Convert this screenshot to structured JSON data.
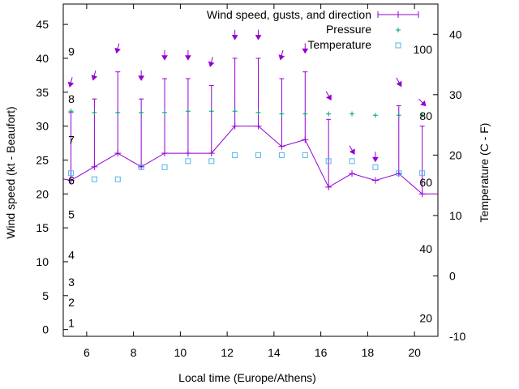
{
  "chart_data": {
    "type": "line",
    "title": "",
    "xlabel": "Local time (Europe/Athens)",
    "ylabel": "Wind speed (kt - Beaufort)",
    "y2label": "Temperature (C - F)",
    "xlim": [
      5,
      21
    ],
    "ylim": [
      -1,
      48
    ],
    "y2lim": [
      -10,
      45
    ],
    "x_ticks": [
      6,
      8,
      10,
      12,
      14,
      16,
      18,
      20
    ],
    "y_ticks": [
      0,
      5,
      10,
      15,
      20,
      25,
      30,
      35,
      40,
      45
    ],
    "y2_ticks": [
      -10,
      0,
      10,
      20,
      30,
      40
    ],
    "beaufort_labels": [
      {
        "label": "1",
        "kt": 1
      },
      {
        "label": "2",
        "kt": 4
      },
      {
        "label": "3",
        "kt": 7
      },
      {
        "label": "4",
        "kt": 11
      },
      {
        "label": "5",
        "kt": 17
      },
      {
        "label": "6",
        "kt": 22
      },
      {
        "label": "7",
        "kt": 28
      },
      {
        "label": "8",
        "kt": 34
      },
      {
        "label": "9",
        "kt": 41
      }
    ],
    "fahrenheit_labels": [
      {
        "label": "20",
        "celsius": -7
      },
      {
        "label": "40",
        "celsius": 4.5
      },
      {
        "label": "60",
        "celsius": 15.5
      },
      {
        "label": "80",
        "celsius": 26.5
      },
      {
        "label": "100",
        "celsius": 37.5
      }
    ],
    "grid": false,
    "legend_position": "top-right",
    "colors": {
      "wind": "#9400d3",
      "pressure": "#009e73",
      "temperature": "#56b4e9",
      "arrow": "#9400d3"
    },
    "series": [
      {
        "name": "Wind speed, gusts, and direction",
        "kind": "line-errorbar",
        "x": [
          5,
          5.33,
          6.33,
          7.33,
          8.33,
          9.33,
          10.33,
          11.33,
          12.33,
          13.33,
          14.33,
          15.33,
          16.33,
          17.33,
          18.33,
          19.33,
          20.33,
          21
        ],
        "values": [
          22.2,
          22,
          24,
          26,
          24,
          26,
          26,
          26,
          30,
          30,
          27,
          28,
          21,
          23,
          22,
          23,
          20,
          20
        ],
        "gusts": [
          null,
          32,
          34,
          38,
          34,
          37,
          37,
          36,
          40,
          40,
          37,
          38,
          31,
          23,
          22,
          33,
          30,
          null
        ]
      },
      {
        "name": "Pressure",
        "kind": "points",
        "x": [
          5.33,
          6.33,
          7.33,
          8.33,
          9.33,
          10.33,
          11.33,
          12.33,
          13.33,
          14.33,
          15.33,
          16.33,
          17.33,
          18.33,
          19.33,
          20.33
        ],
        "values": [
          32.2,
          32,
          32,
          32,
          32,
          32.2,
          32.2,
          32.2,
          32,
          31.8,
          31.8,
          31.8,
          31.8,
          31.6,
          31.6,
          31.6
        ]
      },
      {
        "name": "Temperature",
        "kind": "points",
        "x": [
          5.33,
          6.33,
          7.33,
          8.33,
          9.33,
          10.33,
          11.33,
          12.33,
          13.33,
          14.33,
          15.33,
          16.33,
          17.33,
          18.33,
          19.33,
          20.33
        ],
        "values": [
          17,
          16,
          16,
          18,
          18,
          19,
          19,
          20,
          20,
          20,
          20,
          19,
          19,
          18,
          17,
          17
        ]
      }
    ],
    "direction_arrows": {
      "x": [
        5.33,
        6.33,
        7.33,
        8.33,
        9.33,
        10.33,
        11.33,
        12.33,
        13.33,
        14.33,
        15.33,
        16.33,
        17.33,
        18.33,
        19.33,
        20.33
      ],
      "y": [
        36.5,
        37.5,
        41.5,
        37.5,
        40.5,
        40.5,
        39.5,
        43.5,
        43.5,
        40.5,
        41.5,
        34.5,
        26.5,
        25.5,
        36.5,
        33.5
      ],
      "from_deg": [
        15,
        15,
        15,
        0,
        0,
        0,
        15,
        0,
        0,
        15,
        0,
        330,
        330,
        0,
        330,
        315
      ]
    }
  }
}
